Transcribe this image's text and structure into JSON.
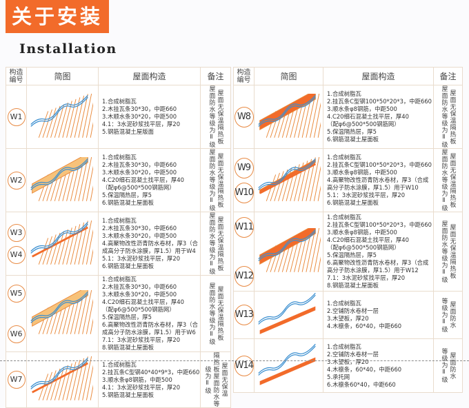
{
  "header": {
    "title": "关于安装",
    "subtitle": "Installation"
  },
  "columns": {
    "num": "构造\n编号",
    "diagram": "简图",
    "construction": "屋面构造",
    "remark": "备注"
  },
  "colors": {
    "accent": "#f26b2a",
    "tile": "#3b8fd0",
    "hatch": "#e9893a"
  },
  "left": [
    {
      "ids": [
        "W1"
      ],
      "style": "plain",
      "items": "1.合成树脂瓦\n2.木挂瓦条30*30，中距660\n3.木顺水条30*20，中距500\n4.1：3水泥砂浆找平层，厚20\n5.钢筋混凝土屋版面",
      "remark": [
        "屋面无保温隔热板",
        "屋面防水等级为Ⅱ级"
      ]
    },
    {
      "ids": [
        "W2"
      ],
      "style": "insulated",
      "items": "1.合成树脂瓦\n2.木挂瓦条30*30，中距660\n3.木顺水条30*20，中距500\n4.C20细石混凝土找平层，厚40\n（配φ6@500*500钢筋网）\n5.保温隔热层，厚5\n6.钢筋混凝土屋面板",
      "remark": [
        "屋面无保温隔热板",
        "屋面防水等级为Ⅱ级"
      ]
    },
    {
      "ids": [
        "W3",
        "W4"
      ],
      "style": "membrane",
      "items": "1.合成树脂瓦\n2.木挂瓦条30*30，中距660\n3.木顺水条30*20，中距500\n4.高聚物改性沥青防水卷材，厚3（合成高分子防水涂膜，厚1.5）用于W4\n5.1：3水泥砂浆找平层，厚20\n6.钢筋混凝土屋面板",
      "remark": [
        "屋面无保温隔热板",
        "屋面防水等级为Ⅱ级"
      ]
    },
    {
      "ids": [
        "W5",
        "W6"
      ],
      "style": "insulated",
      "items": "1.合成树脂瓦\n2.木挂瓦条30*30，中距660\n3.木顺水条30*20，中距500\n4.C20细石混凝土找平层，厚40\n（配φ6@500*500钢筋网）\n5.保温隔热层，厚5\n6.高聚物改性沥青防水卷材，厚3（合成高分子防水涂膜，厚1.5）用于W6\n7.1：3水泥砂浆找平层，厚20\n8.钢筋混凝土屋面板",
      "remark": [
        "屋面无保温隔热板",
        "屋面防水等级为Ⅱ级"
      ]
    },
    {
      "ids": [
        "W7"
      ],
      "style": "steel",
      "items": "1.合成树脂瓦\n2.挂瓦条C型钢40*40*9*3，中距660\n3.顺水条φ8钢筋，中距500\n4.1：3水泥砂浆找平层，厚20\n5.钢筋混凝土屋面板",
      "remark": [
        "屋面无保温",
        "隔热板屋面防水等",
        "级为Ⅱ级"
      ]
    }
  ],
  "right": [
    {
      "ids": [
        "W8"
      ],
      "style": "solid",
      "items": "1.合成树脂瓦\n2.挂瓦条C型钢100*50*20*3，中距660\n3.顺水条φ8钢筋，中距500\n4.C20细石混凝土找平层，厚40\n（配φ6@500*500钢筋网）\n5.保温隔热层，厚5\n6.钢筋混凝土屋面板",
      "remark": [
        "屋面无保温隔热板",
        "屋面防水等级为Ⅱ级"
      ]
    },
    {
      "ids": [
        "W9",
        "W10"
      ],
      "style": "band",
      "items": "1.合成树脂瓦\n2.挂瓦条C型钢100*50*20*3，中距660\n3.顺水条φ8钢筋，中距500\n4.高聚物改性沥青防水卷材，厚3（合成高分子防水涂膜，厚1.5）用于W10\n5.1：3水泥砂浆找平层，厚20\n6.钢筋混凝土屋面板",
      "remark": [
        "屋面无保温隔热板",
        "屋面防水等级为Ⅱ级"
      ]
    },
    {
      "ids": [
        "W11",
        "W12"
      ],
      "style": "solid",
      "items": "1.合成树脂瓦\n2.挂瓦条C型钢100*50*20*3，中距660\n3.顺水条φ8钢筋，中距500\n4.C20细石混凝土找平层，厚40\n（配φ6@500*500钢筋网）\n5.保温隔热层，厚5\n6.高聚物改性沥青防水卷材，厚3（合成高分子防水涂膜，厚1.5）用于W12\n7.1：3水泥砂浆找平层，厚20\n8.钢筋混凝土屋面板",
      "remark": [
        "屋面无保温隔热板",
        "屋面防水等级为Ⅱ级"
      ]
    },
    {
      "ids": [
        "W13"
      ],
      "style": "timber",
      "items": "1.合成树脂瓦\n2.空铺防水卷材一层\n3.木望板，厚20\n4.木檩条，60*40，中距660",
      "remark": [
        "屋面防水",
        "等级为Ⅱ级"
      ]
    },
    {
      "ids": [
        "W14"
      ],
      "style": "timber",
      "items": "1.合成树脂瓦\n2.空铺防水卷材一层\n3.木望板，厚20\n4.木檩条，60*40，中距660\n5.承托网\n6.木檩条60*40，中距660",
      "remark": [
        "屋面防水",
        "等级为Ⅱ级"
      ]
    }
  ]
}
